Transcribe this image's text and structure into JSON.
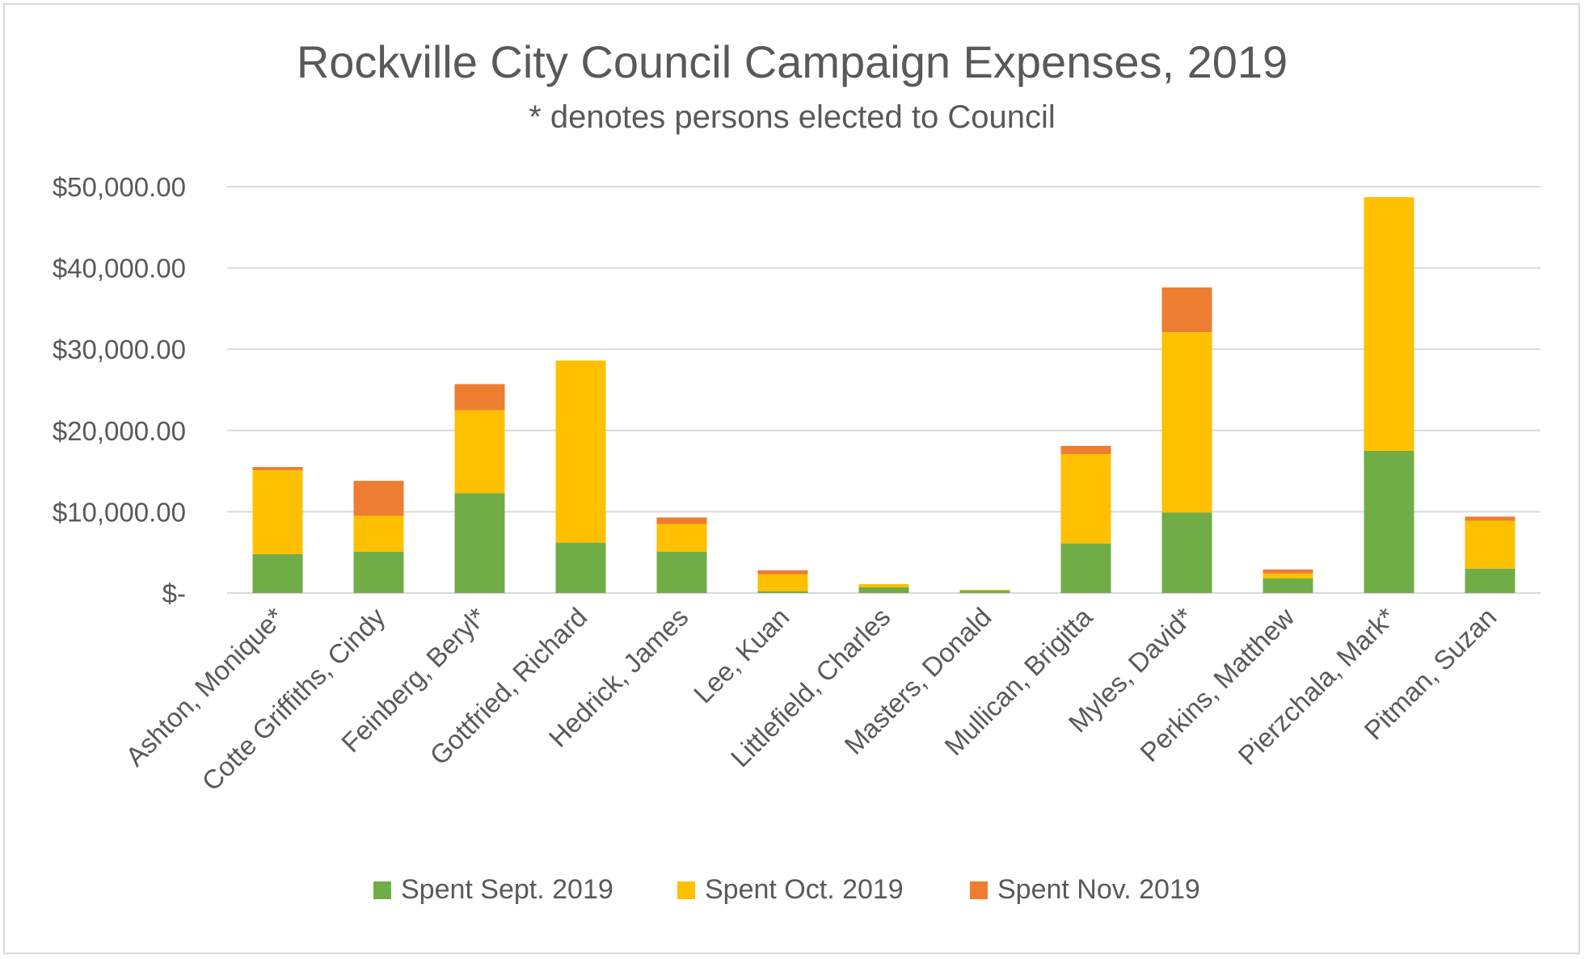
{
  "chart_data": {
    "type": "bar",
    "stacked": true,
    "title": "Rockville City Council Campaign Expenses, 2019",
    "subtitle": "* denotes persons elected to Council",
    "xlabel": "",
    "ylabel": "",
    "ylim": [
      0,
      50000
    ],
    "grid": true,
    "legend_position": "bottom",
    "y_tick_labels": [
      "$-",
      "$10,000.00",
      "$20,000.00",
      "$30,000.00",
      "$40,000.00",
      "$50,000.00"
    ],
    "y_tick_values": [
      0,
      10000,
      20000,
      30000,
      40000,
      50000
    ],
    "categories": [
      "Ashton, Monique*",
      "Cotte Griffiths, Cindy",
      "Feinberg, Beryl*",
      "Gottfried, Richard",
      "Hedrick, James",
      "Lee, Kuan",
      "Littlefield, Charles",
      "Masters, Donald",
      "Mullican, Brigitta",
      "Myles, David*",
      "Perkins, Matthew",
      "Pierzchala, Mark*",
      "Pitman, Suzan"
    ],
    "series": [
      {
        "name": "Spent Sept. 2019",
        "color": "#70ad47",
        "values": [
          4800,
          5100,
          12300,
          6200,
          5100,
          200,
          700,
          300,
          6100,
          9900,
          1800,
          17500,
          3000
        ]
      },
      {
        "name": "Spent Oct. 2019",
        "color": "#ffc000",
        "values": [
          10300,
          4400,
          10200,
          22400,
          3400,
          2100,
          400,
          100,
          11000,
          22200,
          600,
          31200,
          5900
        ]
      },
      {
        "name": "Spent Nov. 2019",
        "color": "#ed7d31",
        "values": [
          400,
          4300,
          3200,
          0,
          800,
          500,
          0,
          0,
          1000,
          5500,
          500,
          0,
          500
        ]
      }
    ]
  }
}
